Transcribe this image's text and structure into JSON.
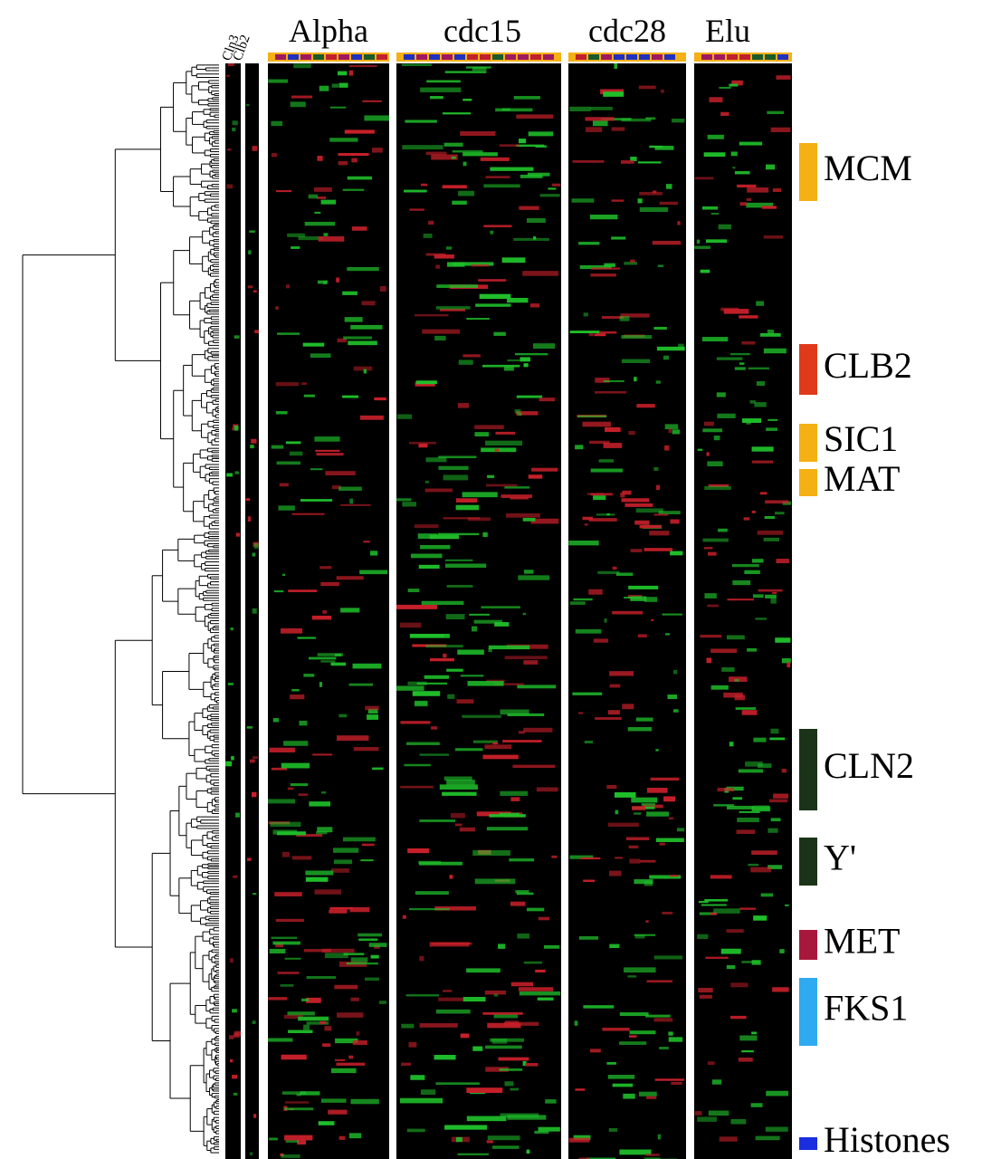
{
  "strips": [
    {
      "label": "Cln3"
    },
    {
      "label": "Clb2"
    }
  ],
  "experiments": [
    {
      "label": "Alpha"
    },
    {
      "label": "cdc15"
    },
    {
      "label": "cdc28"
    },
    {
      "label": "Elu"
    }
  ],
  "clusters": [
    {
      "label": "MCM",
      "color": "#f5b014"
    },
    {
      "label": "CLB2",
      "color": "#e03a1a"
    },
    {
      "label": "SIC1",
      "color": "#f5b014"
    },
    {
      "label": "MAT",
      "color": "#f5b014"
    },
    {
      "label": "CLN2",
      "color": "#1b3318"
    },
    {
      "label": "Y'",
      "color": "#1b3318"
    },
    {
      "label": "MET",
      "color": "#a8183c"
    },
    {
      "label": "FKS1",
      "color": "#2eaaf0"
    },
    {
      "label": "Histones",
      "color": "#1a2ee0"
    }
  ]
}
